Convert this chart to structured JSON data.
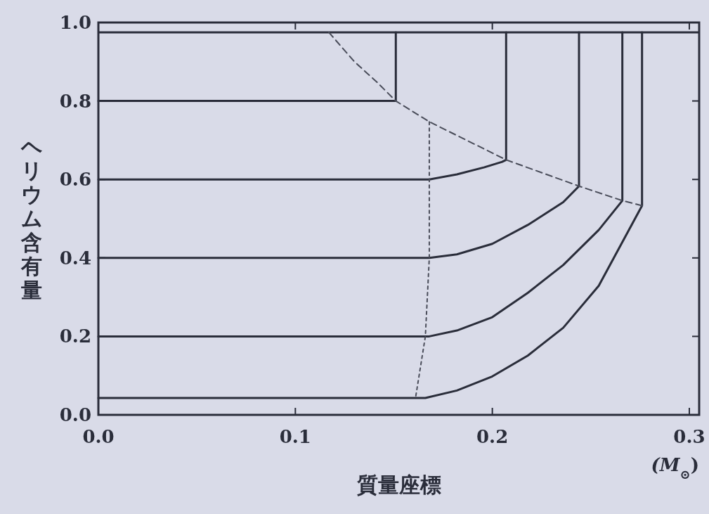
{
  "chart_data": {
    "type": "line",
    "ylabel": "ヘリウム含有量",
    "xlabel": "質量座標",
    "annotations": [
      "(M$_{⊙}$)"
    ],
    "xlim": [
      0,
      0.305
    ],
    "ylim": [
      0,
      1.0
    ],
    "xticks": [
      {
        "value": 0,
        "label": "0.0"
      },
      0.1,
      0.2,
      0.3
    ],
    "yticks": [
      {
        "value": 0,
        "label": "0.0"
      },
      0.2,
      0.4,
      0.6,
      0.8,
      {
        "value": 1.0,
        "label": "1.0"
      }
    ],
    "ref_lines": [
      {
        "axis": "y",
        "value": 0.975,
        "color": "#2a2d3a"
      }
    ],
    "series": [
      {
        "color": "#2a2d3a",
        "x": [
          0,
          0.151,
          0.151
        ],
        "values": [
          0.8,
          0.8,
          0.975
        ]
      },
      {
        "color": "#2a2d3a",
        "x": [
          0,
          0.168,
          0.182,
          0.196,
          0.205,
          0.207,
          0.207
        ],
        "values": [
          0.6,
          0.6,
          0.613,
          0.631,
          0.645,
          0.65,
          0.975
        ]
      },
      {
        "color": "#2a2d3a",
        "x": [
          0,
          0.168,
          0.182,
          0.2,
          0.218,
          0.236,
          0.244,
          0.244
        ],
        "values": [
          0.4,
          0.4,
          0.409,
          0.436,
          0.484,
          0.542,
          0.583,
          0.975
        ]
      },
      {
        "color": "#2a2d3a",
        "x": [
          0,
          0.168,
          0.182,
          0.2,
          0.218,
          0.236,
          0.254,
          0.266,
          0.266
        ],
        "values": [
          0.2,
          0.2,
          0.215,
          0.249,
          0.311,
          0.382,
          0.471,
          0.546,
          0.975
        ]
      },
      {
        "color": "#2a2d3a",
        "x": [
          0,
          0.166,
          0.182,
          0.2,
          0.218,
          0.236,
          0.254,
          0.276,
          0.276
        ],
        "values": [
          0.043,
          0.043,
          0.062,
          0.098,
          0.151,
          0.222,
          0.329,
          0.533,
          0.975
        ]
      },
      {
        "color": "#4a4d5a",
        "line_style": "dashed",
        "x": [
          0.117,
          0.13,
          0.141,
          0.151,
          0.168,
          0.207,
          0.244,
          0.266,
          0.276
        ],
        "values": [
          0.975,
          0.9,
          0.85,
          0.8,
          0.747,
          0.65,
          0.583,
          0.546,
          0.533
        ]
      },
      {
        "color": "#4a4d5a",
        "line_style": "dotted",
        "x": [
          0.168,
          0.168,
          0.166,
          0.161
        ],
        "values": [
          0.747,
          0.4,
          0.2,
          0.043
        ]
      }
    ]
  }
}
